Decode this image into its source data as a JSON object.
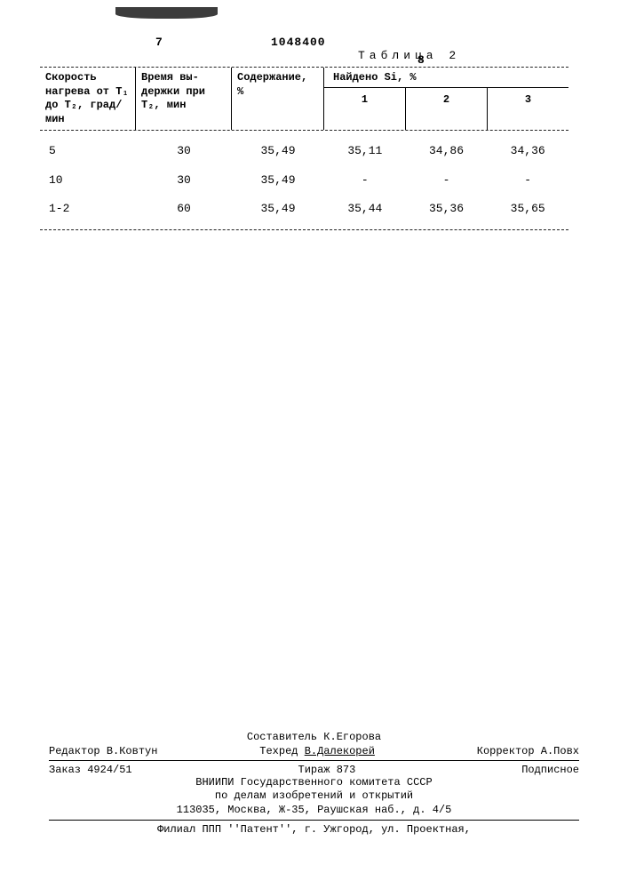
{
  "header": {
    "page_left": "7",
    "doc_number": "1048400",
    "page_right": "8"
  },
  "table": {
    "title": "Таблица 2",
    "columns": {
      "speed": "Скорость нагрева от T₁ до T₂, град/мин",
      "time": "Время вы-\nдержки при T₂, мин",
      "content": "Содержание, %",
      "found_header": "Найдено Si, %",
      "found_sub": [
        "1",
        "2",
        "3"
      ]
    },
    "rows": [
      {
        "speed": "5",
        "time": "30",
        "content": "35,49",
        "f1": "35,11",
        "f2": "34,86",
        "f3": "34,36"
      },
      {
        "speed": "10",
        "time": "30",
        "content": "35,49",
        "f1": "-",
        "f2": "-",
        "f3": "-"
      },
      {
        "speed": "1-2",
        "time": "60",
        "content": "35,49",
        "f1": "35,44",
        "f2": "35,36",
        "f3": "35,65"
      }
    ]
  },
  "footer": {
    "compiler_label": "Составитель",
    "compiler_name": "К.Егорова",
    "editor_label": "Редактор",
    "editor_name": "В.Ковтун",
    "tech_label": "Техред",
    "tech_name": "В.Далекорей",
    "corr_label": "Корректор",
    "corr_name": "А.Повх",
    "order_label": "Заказ",
    "order_no": "4924/51",
    "tirazh_label": "Тираж",
    "tirazh_no": "873",
    "podpis": "Подписное",
    "org1": "ВНИИПИ Государственного комитета СССР",
    "org2": "по делам изобретений и открытий",
    "addr": "113035, Москва, Ж-35, Раушская наб., д. 4/5",
    "filial": "Филиал ППП ''Патент'', г. Ужгород, ул. Проектная,"
  }
}
